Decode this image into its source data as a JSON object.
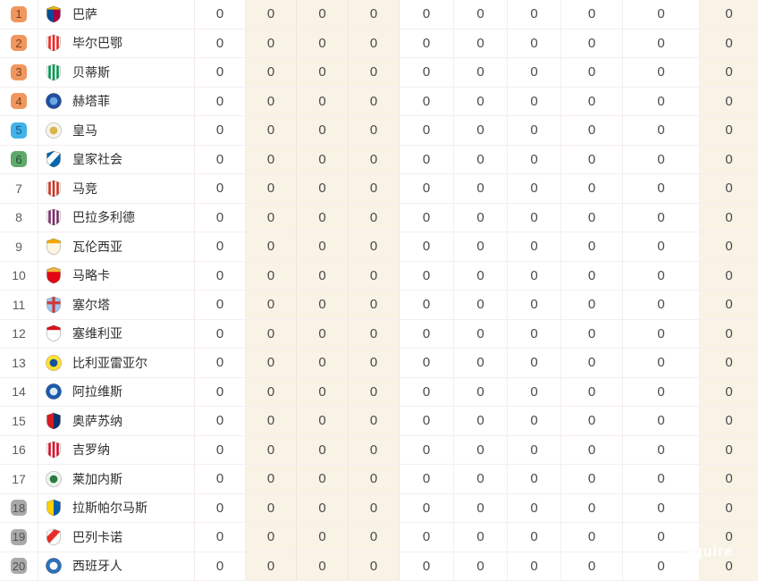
{
  "table": {
    "badge_colors": {
      "orange": {
        "bg": "#f0975f",
        "fg": "#7d4018"
      },
      "blue": {
        "bg": "#41b2e8",
        "fg": "#155a8a"
      },
      "green": {
        "bg": "#5fa96b",
        "fg": "#1e5130"
      },
      "gray": {
        "bg": "#a9a9a9",
        "fg": "#545454"
      }
    },
    "cream_column_bg": "#f9f3e6",
    "rows": [
      {
        "rank": "1",
        "badge": "orange",
        "team": "巴萨",
        "logo": {
          "type": "halves",
          "colors": [
            "#004d98",
            "#a50044"
          ],
          "chief": "#edbb00"
        },
        "stats": [
          "0",
          "0",
          "0",
          "0",
          "0",
          "0",
          "0",
          "0",
          "0",
          "0"
        ]
      },
      {
        "rank": "2",
        "badge": "orange",
        "team": "毕尔巴鄂",
        "logo": {
          "type": "stripes",
          "colors": [
            "#ffffff",
            "#ee2523"
          ]
        },
        "stats": [
          "0",
          "0",
          "0",
          "0",
          "0",
          "0",
          "0",
          "0",
          "0",
          "0"
        ]
      },
      {
        "rank": "3",
        "badge": "orange",
        "team": "贝蒂斯",
        "logo": {
          "type": "stripes",
          "colors": [
            "#ffffff",
            "#00954c"
          ]
        },
        "stats": [
          "0",
          "0",
          "0",
          "0",
          "0",
          "0",
          "0",
          "0",
          "0",
          "0"
        ]
      },
      {
        "rank": "4",
        "badge": "orange",
        "team": "赫塔菲",
        "logo": {
          "type": "circle",
          "colors": [
            "#1f4fa3",
            "#6aa9e0"
          ]
        },
        "stats": [
          "0",
          "0",
          "0",
          "0",
          "0",
          "0",
          "0",
          "0",
          "0",
          "0"
        ]
      },
      {
        "rank": "5",
        "badge": "blue",
        "team": "皇马",
        "logo": {
          "type": "circle",
          "colors": [
            "#f6f4ec",
            "#d9b64a"
          ]
        },
        "stats": [
          "0",
          "0",
          "0",
          "0",
          "0",
          "0",
          "0",
          "0",
          "0",
          "0"
        ]
      },
      {
        "rank": "6",
        "badge": "green",
        "team": "皇家社会",
        "logo": {
          "type": "diagonal",
          "colors": [
            "#0067b1",
            "#ffffff"
          ]
        },
        "stats": [
          "0",
          "0",
          "0",
          "0",
          "0",
          "0",
          "0",
          "0",
          "0",
          "0"
        ]
      },
      {
        "rank": "7",
        "badge": "none",
        "team": "马竞",
        "logo": {
          "type": "stripes",
          "colors": [
            "#ffffff",
            "#cb3524"
          ]
        },
        "stats": [
          "0",
          "0",
          "0",
          "0",
          "0",
          "0",
          "0",
          "0",
          "0",
          "0"
        ]
      },
      {
        "rank": "8",
        "badge": "none",
        "team": "巴拉多利德",
        "logo": {
          "type": "stripes",
          "colors": [
            "#ffffff",
            "#7a2c6b"
          ]
        },
        "stats": [
          "0",
          "0",
          "0",
          "0",
          "0",
          "0",
          "0",
          "0",
          "0",
          "0"
        ]
      },
      {
        "rank": "9",
        "badge": "none",
        "team": "瓦伦西亚",
        "logo": {
          "type": "chief",
          "colors": [
            "#fdf6e3",
            "#f7a800"
          ]
        },
        "stats": [
          "0",
          "0",
          "0",
          "0",
          "0",
          "0",
          "0",
          "0",
          "0",
          "0"
        ]
      },
      {
        "rank": "10",
        "badge": "none",
        "team": "马略卡",
        "logo": {
          "type": "chief",
          "colors": [
            "#e20613",
            "#f0b43c"
          ]
        },
        "stats": [
          "0",
          "0",
          "0",
          "0",
          "0",
          "0",
          "0",
          "0",
          "0",
          "0"
        ]
      },
      {
        "rank": "11",
        "badge": "none",
        "team": "塞尔塔",
        "logo": {
          "type": "cross",
          "colors": [
            "#9cc7f0",
            "#d03a3a"
          ]
        },
        "stats": [
          "0",
          "0",
          "0",
          "0",
          "0",
          "0",
          "0",
          "0",
          "0",
          "0"
        ]
      },
      {
        "rank": "12",
        "badge": "none",
        "team": "塞维利亚",
        "logo": {
          "type": "chief",
          "colors": [
            "#ffffff",
            "#d8131c"
          ]
        },
        "stats": [
          "0",
          "0",
          "0",
          "0",
          "0",
          "0",
          "0",
          "0",
          "0",
          "0"
        ]
      },
      {
        "rank": "13",
        "badge": "none",
        "team": "比利亚雷亚尔",
        "logo": {
          "type": "circle",
          "colors": [
            "#ffe033",
            "#15519b"
          ]
        },
        "stats": [
          "0",
          "0",
          "0",
          "0",
          "0",
          "0",
          "0",
          "0",
          "0",
          "0"
        ]
      },
      {
        "rank": "14",
        "badge": "none",
        "team": "阿拉维斯",
        "logo": {
          "type": "circle",
          "colors": [
            "#1a5bab",
            "#dce9f7"
          ]
        },
        "stats": [
          "0",
          "0",
          "0",
          "0",
          "0",
          "0",
          "0",
          "0",
          "0",
          "0"
        ]
      },
      {
        "rank": "15",
        "badge": "none",
        "team": "奥萨苏纳",
        "logo": {
          "type": "halves",
          "colors": [
            "#d91a21",
            "#0a346f"
          ]
        },
        "stats": [
          "0",
          "0",
          "0",
          "0",
          "0",
          "0",
          "0",
          "0",
          "0",
          "0"
        ]
      },
      {
        "rank": "16",
        "badge": "none",
        "team": "吉罗纳",
        "logo": {
          "type": "stripes",
          "colors": [
            "#ffffff",
            "#d50f29"
          ]
        },
        "stats": [
          "0",
          "0",
          "0",
          "0",
          "0",
          "0",
          "0",
          "0",
          "0",
          "0"
        ]
      },
      {
        "rank": "17",
        "badge": "none",
        "team": "莱加内斯",
        "logo": {
          "type": "circle",
          "colors": [
            "#eef4ee",
            "#2c7a3f"
          ]
        },
        "stats": [
          "0",
          "0",
          "0",
          "0",
          "0",
          "0",
          "0",
          "0",
          "0",
          "0"
        ]
      },
      {
        "rank": "18",
        "badge": "gray",
        "team": "拉斯帕尔马斯",
        "logo": {
          "type": "halves",
          "colors": [
            "#ffd200",
            "#0060aa"
          ]
        },
        "stats": [
          "0",
          "0",
          "0",
          "0",
          "0",
          "0",
          "0",
          "0",
          "0",
          "0"
        ]
      },
      {
        "rank": "19",
        "badge": "gray",
        "team": "巴列卡诺",
        "logo": {
          "type": "diagonal",
          "colors": [
            "#ffffff",
            "#e53027"
          ]
        },
        "stats": [
          "0",
          "0",
          "0",
          "0",
          "0",
          "0",
          "0",
          "0",
          "0",
          "0"
        ]
      },
      {
        "rank": "20",
        "badge": "gray",
        "team": "西班牙人",
        "logo": {
          "type": "circle",
          "colors": [
            "#2e6fb8",
            "#ffffff"
          ]
        },
        "stats": [
          "0",
          "0",
          "0",
          "0",
          "0",
          "0",
          "0",
          "0",
          "0",
          "0"
        ]
      }
    ]
  },
  "watermark": {
    "text": "squire"
  }
}
